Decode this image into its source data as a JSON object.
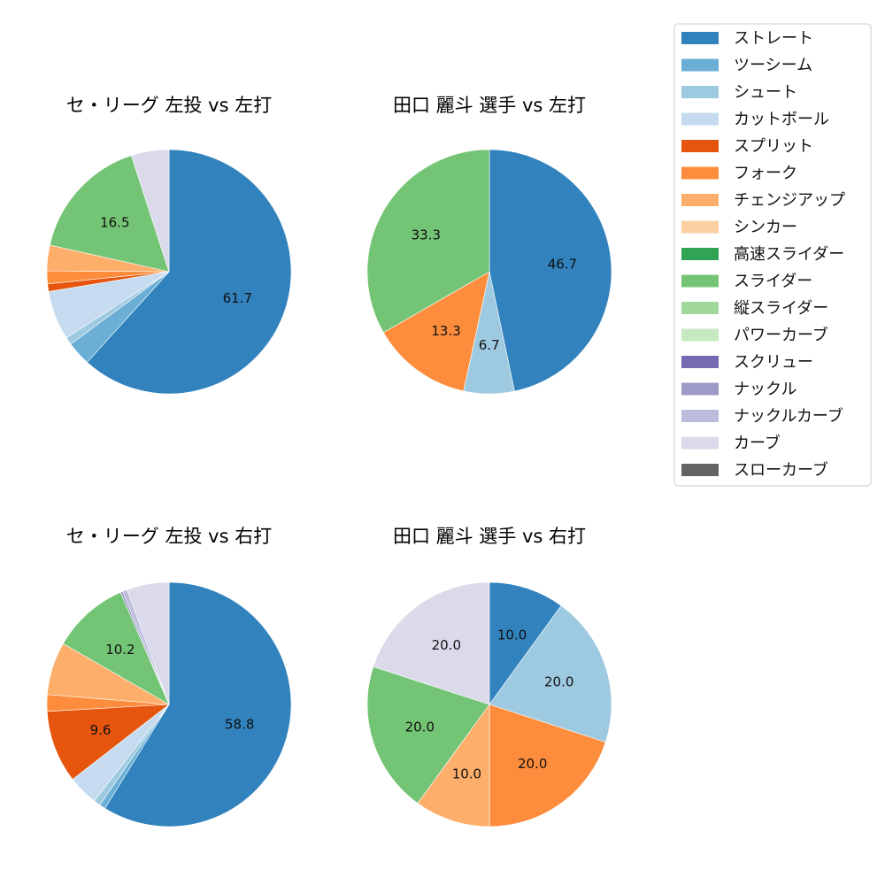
{
  "legend": {
    "items": [
      {
        "label": "ストレート",
        "color": "#3182bd"
      },
      {
        "label": "ツーシーム",
        "color": "#6baed6"
      },
      {
        "label": "シュート",
        "color": "#9ecae1"
      },
      {
        "label": "カットボール",
        "color": "#c6dbef"
      },
      {
        "label": "スプリット",
        "color": "#e6550d"
      },
      {
        "label": "フォーク",
        "color": "#fd8d3c"
      },
      {
        "label": "チェンジアップ",
        "color": "#fdae6b"
      },
      {
        "label": "シンカー",
        "color": "#fdd0a2"
      },
      {
        "label": "高速スライダー",
        "color": "#31a354"
      },
      {
        "label": "スライダー",
        "color": "#74c476"
      },
      {
        "label": "縦スライダー",
        "color": "#a1d99b"
      },
      {
        "label": "パワーカーブ",
        "color": "#c7e9c0"
      },
      {
        "label": "スクリュー",
        "color": "#756bb1"
      },
      {
        "label": "ナックル",
        "color": "#9e9ac8"
      },
      {
        "label": "ナックルカーブ",
        "color": "#bcbddc"
      },
      {
        "label": "カーブ",
        "color": "#dadaeb"
      },
      {
        "label": "スローカーブ",
        "color": "#636363"
      }
    ]
  },
  "chart_data": [
    {
      "type": "pie",
      "title": "セ・リーグ 左投 vs 左打",
      "start_angle": 90,
      "direction": "clockwise",
      "slices": [
        {
          "label": "ストレート",
          "value": 61.7,
          "color": "#3182bd",
          "show_label": true
        },
        {
          "label": "ツーシーム",
          "value": 3.2,
          "color": "#6baed6",
          "show_label": false
        },
        {
          "label": "シュート",
          "value": 1.0,
          "color": "#9ecae1",
          "show_label": false
        },
        {
          "label": "カットボール",
          "value": 6.5,
          "color": "#c6dbef",
          "show_label": false
        },
        {
          "label": "スプリット",
          "value": 1.0,
          "color": "#e6550d",
          "show_label": false
        },
        {
          "label": "フォーク",
          "value": 1.7,
          "color": "#fd8d3c",
          "show_label": false
        },
        {
          "label": "チェンジアップ",
          "value": 3.4,
          "color": "#fdae6b",
          "show_label": false
        },
        {
          "label": "スライダー",
          "value": 16.5,
          "color": "#74c476",
          "show_label": true
        },
        {
          "label": "カーブ",
          "value": 5.0,
          "color": "#dadaeb",
          "show_label": false
        }
      ]
    },
    {
      "type": "pie",
      "title": "田口 麗斗 選手 vs 左打",
      "start_angle": 90,
      "direction": "clockwise",
      "slices": [
        {
          "label": "ストレート",
          "value": 46.7,
          "color": "#3182bd",
          "show_label": true
        },
        {
          "label": "シュート",
          "value": 6.7,
          "color": "#9ecae1",
          "show_label": true
        },
        {
          "label": "フォーク",
          "value": 13.3,
          "color": "#fd8d3c",
          "show_label": true
        },
        {
          "label": "スライダー",
          "value": 33.3,
          "color": "#74c476",
          "show_label": true
        }
      ]
    },
    {
      "type": "pie",
      "title": "セ・リーグ 左投 vs 右打",
      "start_angle": 90,
      "direction": "clockwise",
      "slices": [
        {
          "label": "ストレート",
          "value": 58.8,
          "color": "#3182bd",
          "show_label": true
        },
        {
          "label": "ツーシーム",
          "value": 0.8,
          "color": "#6baed6",
          "show_label": false
        },
        {
          "label": "シュート",
          "value": 0.9,
          "color": "#9ecae1",
          "show_label": false
        },
        {
          "label": "カットボール",
          "value": 4.0,
          "color": "#c6dbef",
          "show_label": false
        },
        {
          "label": "スプリット",
          "value": 9.6,
          "color": "#e6550d",
          "show_label": true
        },
        {
          "label": "フォーク",
          "value": 2.2,
          "color": "#fd8d3c",
          "show_label": false
        },
        {
          "label": "チェンジアップ",
          "value": 7.0,
          "color": "#fdae6b",
          "show_label": false
        },
        {
          "label": "スライダー",
          "value": 10.2,
          "color": "#74c476",
          "show_label": true
        },
        {
          "label": "ナックル",
          "value": 0.3,
          "color": "#9e9ac8",
          "show_label": false
        },
        {
          "label": "ナックルカーブ",
          "value": 0.6,
          "color": "#bcbddc",
          "show_label": false
        },
        {
          "label": "カーブ",
          "value": 5.6,
          "color": "#dadaeb",
          "show_label": false
        }
      ]
    },
    {
      "type": "pie",
      "title": "田口 麗斗 選手 vs 右打",
      "start_angle": 90,
      "direction": "clockwise",
      "slices": [
        {
          "label": "ストレート",
          "value": 10.0,
          "color": "#3182bd",
          "show_label": true
        },
        {
          "label": "シュート",
          "value": 20.0,
          "color": "#9ecae1",
          "show_label": true
        },
        {
          "label": "フォーク",
          "value": 20.0,
          "color": "#fd8d3c",
          "show_label": true
        },
        {
          "label": "チェンジアップ",
          "value": 10.0,
          "color": "#fdae6b",
          "show_label": true
        },
        {
          "label": "スライダー",
          "value": 20.0,
          "color": "#74c476",
          "show_label": true
        },
        {
          "label": "カーブ",
          "value": 20.0,
          "color": "#dadaeb",
          "show_label": true
        }
      ]
    }
  ]
}
